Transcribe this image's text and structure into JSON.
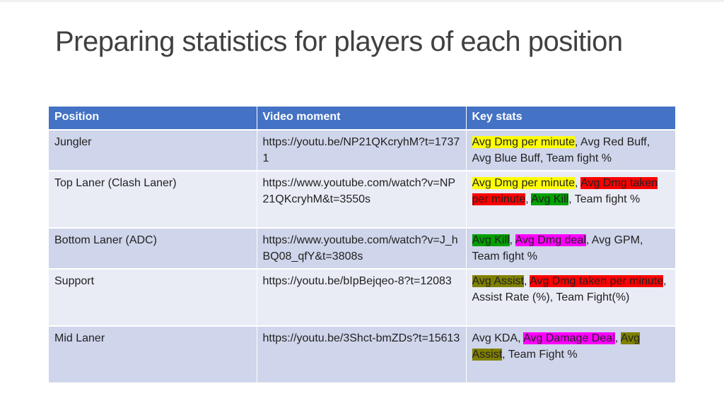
{
  "slide": {
    "title": "Preparing statistics for players of each position"
  },
  "table": {
    "headers": [
      "Position",
      "Video moment",
      "Key stats"
    ],
    "rows": [
      {
        "position": "Jungler",
        "video": "https://youtu.be/NP21QKcryhM?t=17371",
        "stats": [
          {
            "text": "Avg Dmg per minute",
            "hl": "yellow"
          },
          {
            "text": ", Avg Red Buff, Avg Blue Buff, Team fight %",
            "hl": ""
          }
        ]
      },
      {
        "position": "Top Laner (Clash Laner)",
        "video": "https://www.youtube.com/watch?v=NP21QKcryhM&t=3550s",
        "stats": [
          {
            "text": "Avg Dmg per minute",
            "hl": "yellow"
          },
          {
            "text": ", ",
            "hl": ""
          },
          {
            "text": "Avg Dmg taken per minute",
            "hl": "red"
          },
          {
            "text": ", ",
            "hl": ""
          },
          {
            "text": "Avg Kill",
            "hl": "green"
          },
          {
            "text": ", Team fight %",
            "hl": ""
          }
        ]
      },
      {
        "position": "Bottom Laner (ADC)",
        "video": "https://www.youtube.com/watch?v=J_hBQ08_qfY&t=3808s",
        "stats": [
          {
            "text": "Avg Kill",
            "hl": "green"
          },
          {
            "text": ", ",
            "hl": ""
          },
          {
            "text": "Avg Dmg deal",
            "hl": "magenta"
          },
          {
            "text": ", Avg GPM, Team fight %",
            "hl": ""
          }
        ]
      },
      {
        "position": "Support",
        "video": "https://youtu.be/bIpBejqeo-8?t=12083",
        "stats": [
          {
            "text": "Avg Assist",
            "hl": "olive"
          },
          {
            "text": ", ",
            "hl": ""
          },
          {
            "text": "Avg Dmg taken per minute",
            "hl": "red"
          },
          {
            "text": ", Assist Rate (%), Team Fight(%)",
            "hl": ""
          }
        ]
      },
      {
        "position": "Mid Laner",
        "video": "https://youtu.be/3Shct-bmZDs?t=15613",
        "stats": [
          {
            "text": "Avg KDA, ",
            "hl": ""
          },
          {
            "text": "Avg Damage Deal",
            "hl": "magenta"
          },
          {
            "text": ", ",
            "hl": ""
          },
          {
            "text": "Avg Assist",
            "hl": "olive"
          },
          {
            "text": ", Team Fight %",
            "hl": ""
          }
        ]
      }
    ]
  },
  "colors": {
    "header_bg": "#4472c4",
    "row_dark": "#cfd5ea",
    "row_light": "#e9ebf5",
    "title_text": "#404040",
    "highlight_yellow": "#ffff00",
    "highlight_red": "#ff0000",
    "highlight_green": "#00a000",
    "highlight_magenta": "#ff00ff",
    "highlight_olive": "#808000"
  }
}
